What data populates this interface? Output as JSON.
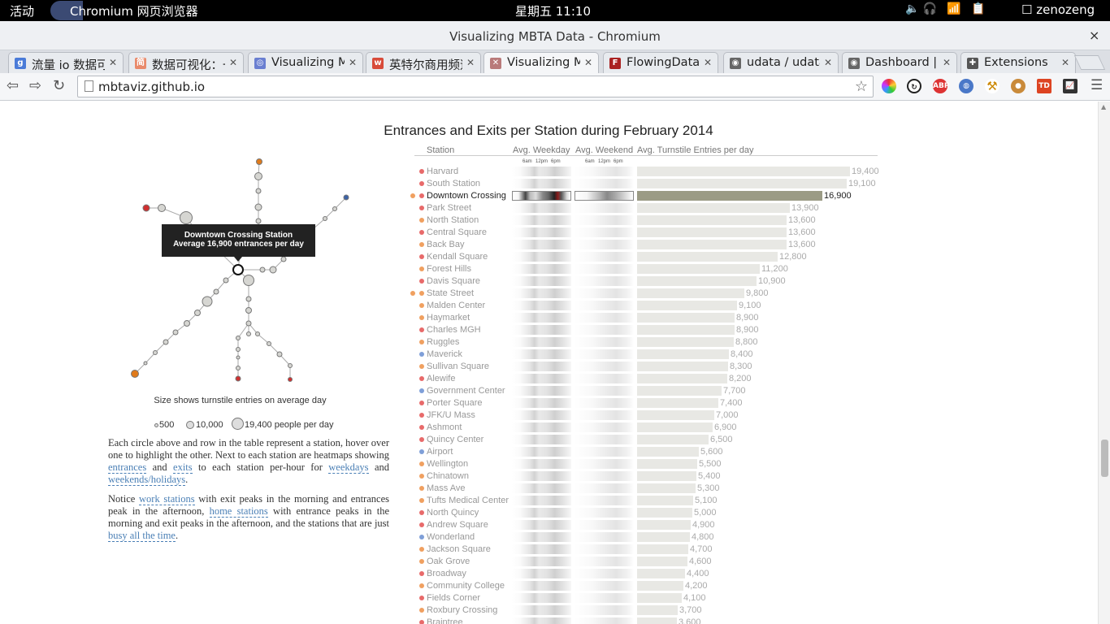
{
  "system_bar": {
    "activities": "活动",
    "app": "Chromium 网页浏览器",
    "clock": "星期五 11:10",
    "user": "zenozeng"
  },
  "window": {
    "title": "Visualizing MBTA Data - Chromium",
    "close": "×"
  },
  "tabs": [
    {
      "label": "流量 io 数据可视化",
      "icon": "google-icon",
      "color": "#4a7bd8",
      "glyph": "g"
    },
    {
      "label": "数据可视化：一",
      "icon": "jianshu-icon",
      "color": "#e98a6b",
      "glyph": "简"
    },
    {
      "label": "Visualizing MBTA",
      "icon": "chromium-icon",
      "color": "#6a7fd1",
      "glyph": "◎"
    },
    {
      "label": "英特尔商用频道",
      "icon": "weibo-icon",
      "color": "#d84b3a",
      "glyph": "w"
    },
    {
      "label": "Visualizing MBTA",
      "icon": "mbta-icon",
      "color": "#b97a7a",
      "glyph": "✕"
    },
    {
      "label": "FlowingData",
      "icon": "flowingdata-icon",
      "color": "#a22",
      "glyph": "F"
    },
    {
      "label": "udata / udata",
      "icon": "github-icon",
      "color": "#666",
      "glyph": "◉"
    },
    {
      "label": "Dashboard | GitHub",
      "icon": "github-icon",
      "color": "#666",
      "glyph": "◉"
    },
    {
      "label": "Extensions",
      "icon": "puzzle-icon",
      "color": "#555",
      "glyph": "✚"
    }
  ],
  "toolbar": {
    "url": "mbtaviz.github.io"
  },
  "chart_data": {
    "type": "bar",
    "title": "Entrances and Exits per Station during February 2014",
    "columns": [
      "Station",
      "Avg. Weekday",
      "Avg. Weekend",
      "Avg. Turnstile Entries per day"
    ],
    "heatmap_hours": [
      "6am",
      "12pm",
      "6pm"
    ],
    "highlighted": "Downtown Crossing",
    "categories": [
      "Harvard",
      "South Station",
      "Downtown Crossing",
      "Park Street",
      "North Station",
      "Central Square",
      "Back Bay",
      "Kendall Square",
      "Forest Hills",
      "Davis Square",
      "State Street",
      "Malden Center",
      "Haymarket",
      "Charles MGH",
      "Ruggles",
      "Maverick",
      "Sullivan Square",
      "Alewife",
      "Government Center",
      "Porter Square",
      "JFK/U Mass",
      "Ashmont",
      "Quincy Center",
      "Airport",
      "Wellington",
      "Chinatown",
      "Mass Ave",
      "Tufts Medical Center",
      "North Quincy",
      "Andrew Square",
      "Wonderland",
      "Jackson Square",
      "Oak Grove",
      "Broadway",
      "Community College",
      "Fields Corner",
      "Roxbury Crossing",
      "Braintree"
    ],
    "values": [
      19400,
      19100,
      16900,
      13900,
      13600,
      13600,
      13600,
      12800,
      11200,
      10900,
      9800,
      9100,
      8900,
      8900,
      8800,
      8400,
      8300,
      8200,
      7700,
      7400,
      7000,
      6900,
      6500,
      5600,
      5500,
      5400,
      5300,
      5100,
      5000,
      4900,
      4800,
      4700,
      4600,
      4400,
      4200,
      4100,
      3700,
      3600
    ],
    "value_labels": [
      "19,400",
      "19,100",
      "16,900",
      "13,900",
      "13,600",
      "13,600",
      "13,600",
      "12,800",
      "11,200",
      "10,900",
      "9,800",
      "9,100",
      "8,900",
      "8,900",
      "8,800",
      "8,400",
      "8,300",
      "8,200",
      "7,700",
      "7,400",
      "7,000",
      "6,900",
      "6,500",
      "5,600",
      "5,500",
      "5,400",
      "5,300",
      "5,100",
      "5,000",
      "4,900",
      "4,800",
      "4,700",
      "4,600",
      "4,400",
      "4,200",
      "4,100",
      "3,700",
      "3,600"
    ],
    "line_colors": {
      "red": "#e86a6a",
      "orange": "#f0a060",
      "blue": "#7f9fd8"
    },
    "station_lines": [
      "red",
      "red",
      "red",
      "red",
      "orange",
      "red",
      "orange",
      "red",
      "orange",
      "red",
      "orange",
      "orange",
      "orange",
      "red",
      "orange",
      "blue",
      "orange",
      "red",
      "blue",
      "red",
      "red",
      "red",
      "red",
      "blue",
      "orange",
      "orange",
      "orange",
      "orange",
      "red",
      "red",
      "blue",
      "orange",
      "orange",
      "red",
      "orange",
      "red",
      "orange",
      "red"
    ],
    "secondary_lines": {
      "2": "orange",
      "10": "orange"
    }
  },
  "map": {
    "tooltip_title": "Downtown Crossing Station",
    "tooltip_text": "Average 16,900 entrances per day",
    "caption": "Size shows turnstile entries on average day",
    "legend": [
      {
        "label": "500"
      },
      {
        "label": "10,000"
      },
      {
        "label": "19,400 people per day"
      }
    ]
  },
  "text": {
    "p1_a": "Each circle above and row in the table represent a station, hover over one to highlight the other. Next to each station are heatmaps showing ",
    "p1_entrances": "entrances",
    "p1_and": " and ",
    "p1_exits": "exits",
    "p1_b": " to each station per-hour for ",
    "p1_weekdays": "weekdays",
    "p1_and2": " and ",
    "p1_weekends": "weekends/holidays",
    "p1_end": ".",
    "p2_a": "Notice ",
    "p2_work": "work stations",
    "p2_b": " with exit peaks in the morning and entrances peak in the afternoon, ",
    "p2_home": "home stations",
    "p2_c": " with entrance peaks in the morning and exit peaks in the afternoon, and the stations that are just ",
    "p2_busy": "busy all the time",
    "p2_end": "."
  }
}
